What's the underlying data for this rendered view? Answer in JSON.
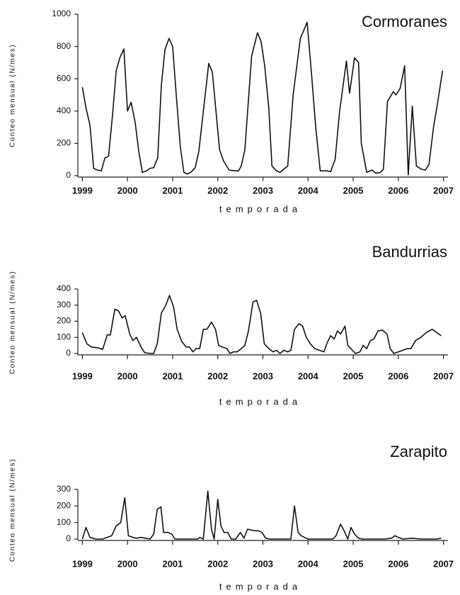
{
  "chart_data": [
    {
      "type": "line",
      "title": "Cormoranes",
      "x_label": "temporada",
      "y_label": "Conteo mensual (N/mes)",
      "xlim": [
        1998.9,
        2007.1
      ],
      "xticks": [
        1999,
        2000,
        2001,
        2002,
        2003,
        2004,
        2005,
        2006,
        2007
      ],
      "ylim": [
        0,
        1000
      ],
      "yticks": [
        0,
        200,
        400,
        600,
        800,
        1000
      ],
      "x": [
        1999.0,
        1999.08,
        1999.17,
        1999.25,
        1999.33,
        1999.42,
        1999.5,
        1999.58,
        1999.67,
        1999.75,
        1999.83,
        1999.92,
        2000.0,
        2000.08,
        2000.17,
        2000.25,
        2000.33,
        2000.42,
        2000.5,
        2000.58,
        2000.67,
        2000.75,
        2000.83,
        2000.92,
        2001.0,
        2001.08,
        2001.17,
        2001.25,
        2001.33,
        2001.42,
        2001.5,
        2001.58,
        2001.8,
        2001.88,
        2001.96,
        2002.04,
        2002.13,
        2002.25,
        2002.38,
        2002.46,
        2002.52,
        2002.6,
        2002.75,
        2002.88,
        2002.96,
        2003.04,
        2003.13,
        2003.2,
        2003.3,
        2003.38,
        2003.46,
        2003.55,
        2003.67,
        2003.83,
        2003.98,
        2004.08,
        2004.17,
        2004.27,
        2004.42,
        2004.5,
        2004.6,
        2004.7,
        2004.85,
        2004.92,
        2005.03,
        2005.12,
        2005.18,
        2005.3,
        2005.42,
        2005.5,
        2005.6,
        2005.67,
        2005.76,
        2005.89,
        2005.95,
        2006.04,
        2006.14,
        2006.22,
        2006.31,
        2006.4,
        2006.51,
        2006.6,
        2006.68,
        2006.78,
        2006.87,
        2006.98
      ],
      "series": [
        {
          "name": "Cormoranes",
          "color": "#111111",
          "values": [
            548,
            420,
            310,
            45,
            35,
            30,
            110,
            120,
            380,
            650,
            730,
            785,
            400,
            455,
            330,
            150,
            20,
            30,
            45,
            50,
            110,
            560,
            780,
            850,
            800,
            500,
            180,
            20,
            10,
            25,
            50,
            150,
            695,
            640,
            400,
            160,
            90,
            35,
            30,
            30,
            60,
            160,
            740,
            885,
            830,
            680,
            420,
            60,
            30,
            20,
            40,
            60,
            500,
            850,
            950,
            620,
            300,
            30,
            30,
            25,
            100,
            400,
            710,
            510,
            730,
            700,
            200,
            20,
            35,
            15,
            20,
            40,
            460,
            520,
            500,
            540,
            680,
            5,
            430,
            60,
            40,
            35,
            70,
            300,
            450,
            650
          ]
        }
      ]
    },
    {
      "type": "line",
      "title": "Bandurrias",
      "x_label": "temporada",
      "y_label": "Conteo mensual (N/mes)",
      "xlim": [
        1998.9,
        2007.1
      ],
      "xticks": [
        1999,
        2000,
        2001,
        2002,
        2003,
        2004,
        2005,
        2006,
        2007
      ],
      "ylim": [
        0,
        400
      ],
      "yticks": [
        0,
        100,
        200,
        300,
        400
      ],
      "x": [
        1999.0,
        1999.1,
        1999.2,
        1999.35,
        1999.45,
        1999.55,
        1999.62,
        1999.72,
        1999.8,
        1999.88,
        1999.95,
        2000.05,
        2000.12,
        2000.2,
        2000.3,
        2000.38,
        2000.5,
        2000.58,
        2000.66,
        2000.75,
        2000.85,
        2000.93,
        2001.02,
        2001.1,
        2001.2,
        2001.3,
        2001.37,
        2001.45,
        2001.52,
        2001.6,
        2001.68,
        2001.76,
        2001.86,
        2001.95,
        2002.02,
        2002.1,
        2002.2,
        2002.27,
        2002.35,
        2002.43,
        2002.52,
        2002.6,
        2002.68,
        2002.78,
        2002.86,
        2002.95,
        2003.03,
        2003.13,
        2003.22,
        2003.3,
        2003.38,
        2003.46,
        2003.55,
        2003.62,
        2003.7,
        2003.8,
        2003.88,
        2003.96,
        2004.05,
        2004.15,
        2004.25,
        2004.35,
        2004.43,
        2004.5,
        2004.58,
        2004.65,
        2004.72,
        2004.82,
        2004.88,
        2004.98,
        2005.05,
        2005.15,
        2005.22,
        2005.3,
        2005.38,
        2005.46,
        2005.55,
        2005.65,
        2005.75,
        2005.82,
        2005.9,
        2006.0,
        2006.1,
        2006.2,
        2006.28,
        2006.38,
        2006.5,
        2006.62,
        2006.75,
        2006.85,
        2006.95
      ],
      "series": [
        {
          "name": "Bandurrias",
          "color": "#111111",
          "values": [
            130,
            60,
            40,
            35,
            25,
            115,
            115,
            275,
            265,
            220,
            235,
            120,
            80,
            100,
            40,
            5,
            0,
            0,
            60,
            250,
            300,
            360,
            290,
            150,
            75,
            40,
            40,
            10,
            30,
            30,
            150,
            150,
            195,
            150,
            50,
            40,
            30,
            0,
            10,
            10,
            30,
            50,
            140,
            320,
            330,
            250,
            60,
            30,
            10,
            20,
            0,
            20,
            10,
            20,
            150,
            185,
            170,
            100,
            60,
            30,
            20,
            10,
            70,
            110,
            90,
            140,
            120,
            170,
            50,
            20,
            0,
            10,
            50,
            30,
            80,
            90,
            140,
            145,
            120,
            30,
            0,
            10,
            20,
            30,
            30,
            80,
            100,
            130,
            150,
            130,
            110
          ]
        }
      ]
    },
    {
      "type": "line",
      "title": "Zarapito",
      "x_label": "temporada",
      "y_label": "Conteo mensual (N/mes)",
      "xlim": [
        1998.9,
        2007.1
      ],
      "xticks": [
        1999,
        2000,
        2001,
        2002,
        2003,
        2004,
        2005,
        2006,
        2007
      ],
      "ylim": [
        0,
        300
      ],
      "yticks": [
        0,
        100,
        200,
        300
      ],
      "x": [
        1999.0,
        1999.08,
        1999.17,
        1999.3,
        1999.45,
        1999.55,
        1999.65,
        1999.75,
        1999.85,
        1999.94,
        2000.02,
        2000.12,
        2000.2,
        2000.3,
        2000.4,
        2000.5,
        2000.58,
        2000.66,
        2000.74,
        2000.8,
        2000.9,
        2000.98,
        2001.05,
        2001.2,
        2001.4,
        2001.55,
        2001.6,
        2001.68,
        2001.78,
        2001.86,
        2001.92,
        2002.0,
        2002.07,
        2002.14,
        2002.22,
        2002.3,
        2002.4,
        2002.5,
        2002.58,
        2002.66,
        2002.74,
        2002.82,
        2002.9,
        2002.98,
        2003.06,
        2003.15,
        2003.3,
        2003.45,
        2003.62,
        2003.7,
        2003.78,
        2003.85,
        2003.92,
        2004.0,
        2004.1,
        2004.25,
        2004.4,
        2004.55,
        2004.62,
        2004.72,
        2004.8,
        2004.88,
        2004.95,
        2005.03,
        2005.12,
        2005.2,
        2005.4,
        2005.55,
        2005.7,
        2005.85,
        2005.93,
        2006.0,
        2006.1,
        2006.3,
        2006.5,
        2006.7,
        2006.85,
        2006.95
      ],
      "series": [
        {
          "name": "Zarapito",
          "color": "#111111",
          "values": [
            0,
            70,
            10,
            0,
            0,
            10,
            20,
            80,
            100,
            250,
            20,
            10,
            5,
            10,
            5,
            0,
            30,
            180,
            195,
            40,
            40,
            30,
            0,
            0,
            0,
            0,
            10,
            0,
            290,
            60,
            0,
            240,
            80,
            40,
            40,
            0,
            0,
            40,
            5,
            60,
            55,
            50,
            50,
            40,
            5,
            0,
            0,
            0,
            0,
            200,
            40,
            20,
            10,
            0,
            0,
            0,
            0,
            0,
            20,
            90,
            50,
            0,
            70,
            30,
            5,
            0,
            0,
            0,
            0,
            5,
            20,
            10,
            0,
            5,
            0,
            0,
            0,
            5
          ]
        }
      ]
    }
  ]
}
